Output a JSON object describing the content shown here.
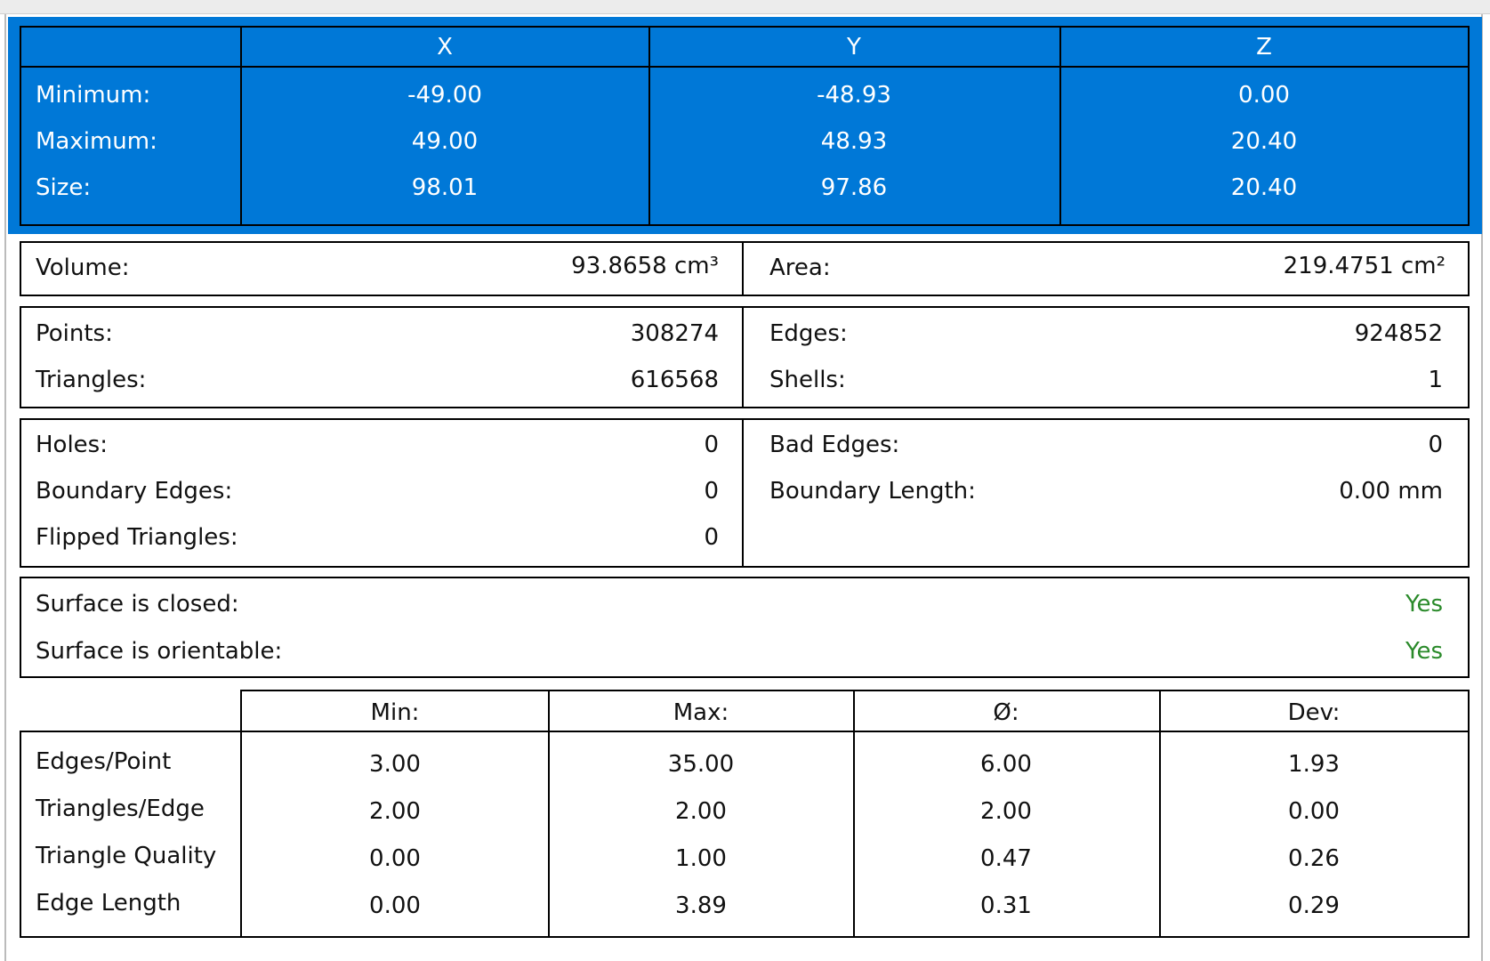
{
  "bounds": {
    "headers": [
      "X",
      "Y",
      "Z"
    ],
    "rows": [
      {
        "label": "Minimum:",
        "values": [
          "-49.00",
          "-48.93",
          "0.00"
        ]
      },
      {
        "label": "Maximum:",
        "values": [
          "49.00",
          "48.93",
          "20.40"
        ]
      },
      {
        "label": "Size:",
        "values": [
          "98.01",
          "97.86",
          "20.40"
        ]
      }
    ]
  },
  "volume": {
    "label": "Volume:",
    "value": "93.8658 cm³"
  },
  "area": {
    "label": "Area:",
    "value": "219.4751 cm²"
  },
  "counts": {
    "left": [
      {
        "label": "Points:",
        "value": "308274"
      },
      {
        "label": "Triangles:",
        "value": "616568"
      }
    ],
    "right": [
      {
        "label": "Edges:",
        "value": "924852"
      },
      {
        "label": "Shells:",
        "value": "1"
      }
    ]
  },
  "defects": {
    "left": [
      {
        "label": "Holes:",
        "value": "0"
      },
      {
        "label": "Boundary Edges:",
        "value": "0"
      },
      {
        "label": "Flipped Triangles:",
        "value": "0"
      }
    ],
    "right": [
      {
        "label": "Bad Edges:",
        "value": "0"
      },
      {
        "label": "Boundary Length:",
        "value": "0.00 mm"
      }
    ]
  },
  "surface": [
    {
      "label": "Surface is closed:",
      "value": "Yes"
    },
    {
      "label": "Surface is orientable:",
      "value": "Yes"
    }
  ],
  "statistics": {
    "headers": [
      "Min:",
      "Max:",
      "Ø:",
      "Dev:"
    ],
    "rows": [
      {
        "label": "Edges/Point",
        "values": [
          "3.00",
          "35.00",
          "6.00",
          "1.93"
        ]
      },
      {
        "label": "Triangles/Edge",
        "values": [
          "2.00",
          "2.00",
          "2.00",
          "0.00"
        ]
      },
      {
        "label": "Triangle Quality",
        "values": [
          "0.00",
          "1.00",
          "0.47",
          "0.26"
        ]
      },
      {
        "label": "Edge Length",
        "values": [
          "0.00",
          "3.89",
          "0.31",
          "0.29"
        ]
      }
    ]
  }
}
